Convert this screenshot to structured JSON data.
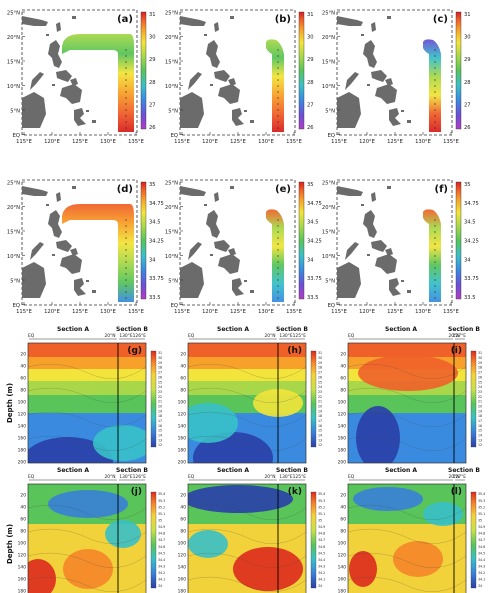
{
  "maps": {
    "lat_ticks": [
      "25°N",
      "20°N",
      "15°N",
      "10°N",
      "5°N",
      "EQ"
    ],
    "lon_ticks": [
      "115°E",
      "120°E",
      "125°E",
      "130°E",
      "135°E"
    ],
    "row1": {
      "panels": [
        "(a)",
        "(b)",
        "(c)"
      ],
      "colorbar": [
        "31",
        "30",
        "29",
        "28",
        "27",
        "26"
      ],
      "colors": [
        "#b33cc8",
        "#6b4fd6",
        "#3a8be0",
        "#39c0c8",
        "#58c45a",
        "#a8d84a",
        "#f2e43a",
        "#f7a12a",
        "#f0612a",
        "#d81f1f"
      ]
    },
    "row2": {
      "panels": [
        "(d)",
        "(e)",
        "(f)"
      ],
      "colorbar": [
        "35",
        "34.75",
        "34.5",
        "34.25",
        "34",
        "33.75",
        "33.5"
      ],
      "colors": [
        "#b33cc8",
        "#6b4fd6",
        "#3a8be0",
        "#39c0c8",
        "#58c45a",
        "#a8d84a",
        "#f2e43a",
        "#f7a12a",
        "#f0612a",
        "#d81f1f"
      ]
    }
  },
  "sections": {
    "ylabel": "Depth (m)",
    "depth_ticks": [
      "20",
      "40",
      "60",
      "80",
      "100",
      "120",
      "140",
      "160",
      "180",
      "200"
    ],
    "section_a": "Section A",
    "section_b": "Section B",
    "row1": {
      "panels": [
        "(g)",
        "(h)",
        "(i)"
      ],
      "top_ticks": [
        [
          "EQ",
          "20°N",
          "130°E",
          "126°E"
        ],
        [
          "EQ",
          "20°N",
          "130°E",
          "125°E"
        ],
        [
          "EQ",
          "20°N",
          "127°E"
        ]
      ],
      "colorbar": [
        "31",
        "30",
        "29",
        "28",
        "27",
        "26",
        "25",
        "24",
        "23",
        "22",
        "21",
        "20",
        "19",
        "18",
        "17",
        "16",
        "15",
        "14",
        "13",
        "12"
      ]
    },
    "row2": {
      "panels": [
        "(j)",
        "(k)",
        "(l)"
      ],
      "top_ticks": [
        [
          "EQ",
          "20°N",
          "130°E",
          "126°E"
        ],
        [
          "EQ",
          "20°N",
          "130°E",
          "125°E"
        ],
        [
          "EQ",
          "20°N",
          "127°E"
        ]
      ],
      "colorbar": [
        "35.4",
        "35.3",
        "35.2",
        "35.1",
        "35",
        "34.9",
        "34.8",
        "34.7",
        "34.6",
        "34.5",
        "34.4",
        "34.3",
        "34.2",
        "34.1",
        "34"
      ]
    }
  }
}
